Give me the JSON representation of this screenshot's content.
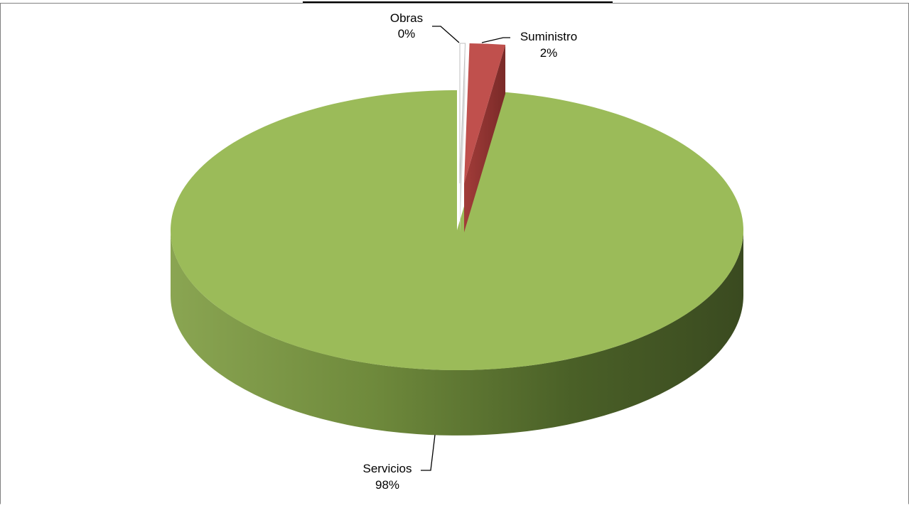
{
  "chart_data": {
    "type": "pie",
    "style": "3d-exploded",
    "categories": [
      "Obras",
      "Suministro",
      "Servicios"
    ],
    "values": [
      0.3,
      2,
      97.7
    ],
    "labels": [
      {
        "name": "Obras",
        "percent": "0%"
      },
      {
        "name": "Suministro",
        "percent": "2%"
      },
      {
        "name": "Servicios",
        "percent": "98%"
      }
    ],
    "title": "",
    "legend": "none",
    "colors": {
      "Obras": "#ffffff",
      "Suministro": "#c0504d",
      "Servicios": "#9bbb59"
    }
  }
}
